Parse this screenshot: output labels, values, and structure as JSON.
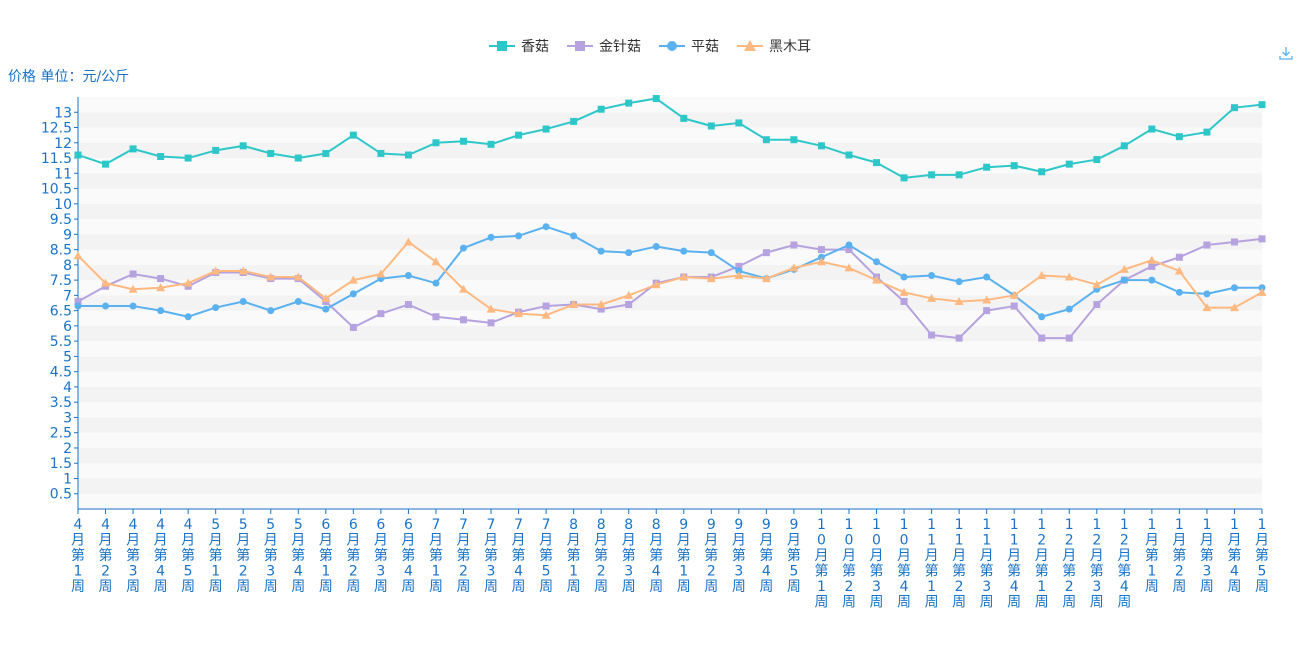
{
  "chart_data": {
    "type": "line",
    "ylabel": "价格 单位：元/公斤",
    "ylim": [
      0,
      13.5
    ],
    "yticks": [
      0.5,
      1,
      1.5,
      2,
      2.5,
      3,
      3.5,
      4,
      4.5,
      5,
      5.5,
      6,
      6.5,
      7,
      7.5,
      8,
      8.5,
      9,
      9.5,
      10,
      10.5,
      11,
      11.5,
      12,
      12.5,
      13
    ],
    "grid": true,
    "legend_position": "top-center",
    "categories": [
      "4月第1周",
      "4月第2周",
      "4月第3周",
      "4月第4周",
      "4月第5周",
      "5月第1周",
      "5月第2周",
      "5月第3周",
      "5月第4周",
      "6月第1周",
      "6月第2周",
      "6月第3周",
      "6月第4周",
      "7月第1周",
      "7月第2周",
      "7月第3周",
      "7月第4周",
      "7月第5周",
      "8月第1周",
      "8月第2周",
      "8月第3周",
      "8月第4周",
      "9月第1周",
      "9月第2周",
      "9月第3周",
      "9月第4周",
      "9月第5周",
      "10月第1周",
      "10月第2周",
      "10月第3周",
      "10月第4周",
      "11月第1周",
      "11月第2周",
      "11月第3周",
      "11月第4周",
      "12月第1周",
      "12月第2周",
      "12月第3周",
      "12月第4周",
      "1月第1周",
      "1月第2周",
      "1月第3周",
      "1月第4周",
      "1月第5周"
    ],
    "series": [
      {
        "name": "香菇",
        "color": "#2ec7c9",
        "marker": "square",
        "values": [
          11.6,
          11.3,
          11.8,
          11.55,
          11.5,
          11.75,
          11.9,
          11.65,
          11.5,
          11.65,
          12.25,
          11.65,
          11.6,
          12,
          12.05,
          11.95,
          12.25,
          12.45,
          12.7,
          13.1,
          13.3,
          13.45,
          12.8,
          12.55,
          12.65,
          12.1,
          12.1,
          11.9,
          11.6,
          11.35,
          10.85,
          10.95,
          10.95,
          11.2,
          11.25,
          11.05,
          11.3,
          11.45,
          11.9,
          12.45,
          12.2,
          12.35,
          13.15,
          13.25
        ]
      },
      {
        "name": "金针菇",
        "color": "#b6a2de",
        "marker": "square",
        "values": [
          6.8,
          7.3,
          7.7,
          7.55,
          7.3,
          7.75,
          7.75,
          7.55,
          7.55,
          6.8,
          5.95,
          6.4,
          6.7,
          6.3,
          6.2,
          6.1,
          6.45,
          6.65,
          6.7,
          6.55,
          6.7,
          7.4,
          7.6,
          7.6,
          7.95,
          8.4,
          8.65,
          8.5,
          8.5,
          7.6,
          6.8,
          5.7,
          5.6,
          6.5,
          6.65,
          5.6,
          5.6,
          6.7,
          7.5,
          7.95,
          8.25,
          8.65,
          8.75,
          8.85
        ]
      },
      {
        "name": "平菇",
        "color": "#5ab1ef",
        "marker": "circle",
        "values": [
          6.65,
          6.65,
          6.65,
          6.5,
          6.3,
          6.6,
          6.8,
          6.5,
          6.8,
          6.55,
          7.05,
          7.55,
          7.65,
          7.4,
          8.55,
          8.9,
          8.95,
          9.25,
          8.95,
          8.45,
          8.4,
          8.6,
          8.45,
          8.4,
          7.8,
          7.55,
          7.85,
          8.25,
          8.65,
          8.1,
          7.6,
          7.65,
          7.45,
          7.6,
          7.0,
          6.3,
          6.55,
          7.2,
          7.5,
          7.5,
          7.1,
          7.05,
          7.25,
          7.25
        ]
      },
      {
        "name": "黑木耳",
        "color": "#ffb980",
        "marker": "triangle",
        "values": [
          8.3,
          7.4,
          7.2,
          7.25,
          7.4,
          7.8,
          7.8,
          7.6,
          7.6,
          6.9,
          7.5,
          7.7,
          8.75,
          8.1,
          7.2,
          6.55,
          6.4,
          6.35,
          6.7,
          6.7,
          7.0,
          7.35,
          7.6,
          7.55,
          7.65,
          7.55,
          7.9,
          8.1,
          7.9,
          7.5,
          7.1,
          6.9,
          6.8,
          6.85,
          7.0,
          7.65,
          7.6,
          7.35,
          7.85,
          8.15,
          7.8,
          6.6,
          6.6,
          7.1
        ]
      }
    ]
  }
}
